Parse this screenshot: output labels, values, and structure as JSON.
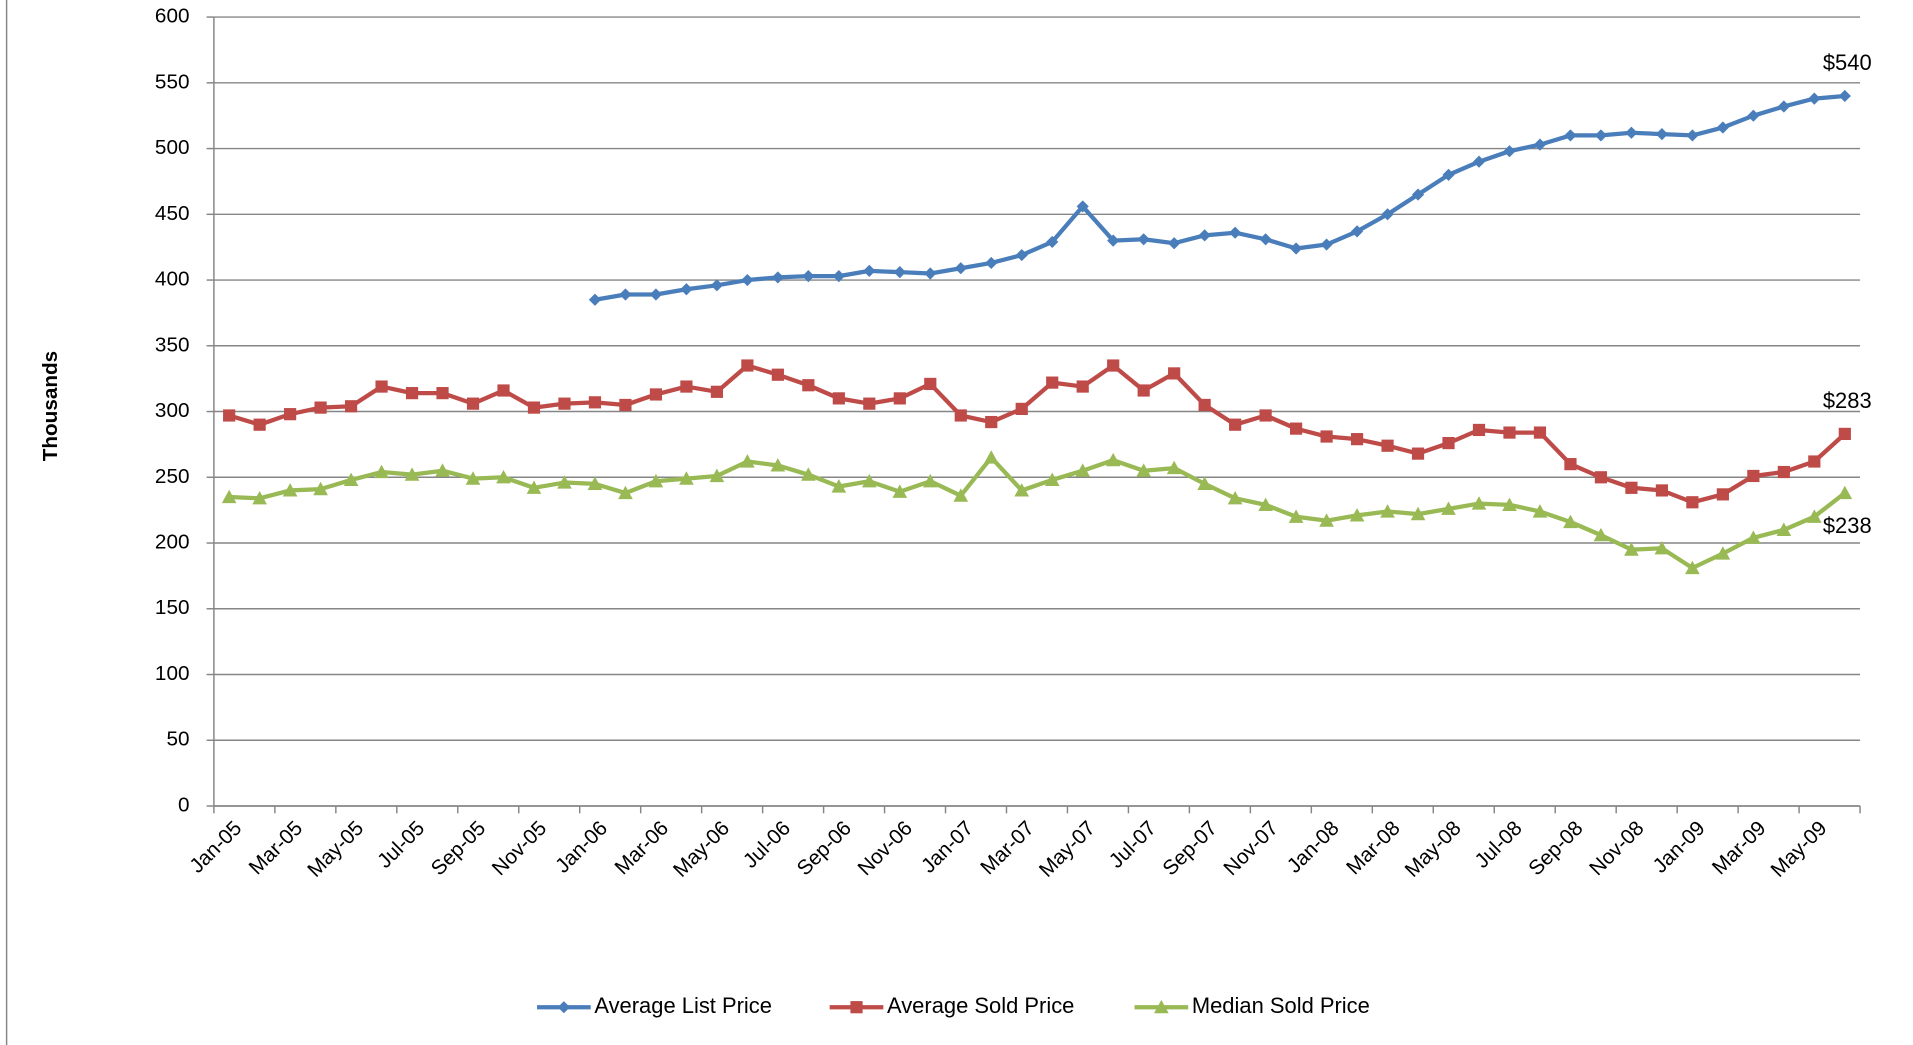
{
  "chart_data": {
    "type": "line",
    "y_label": "Thousands",
    "categories": [
      "Jan-05",
      null,
      "Mar-05",
      null,
      "May-05",
      null,
      "Jul-05",
      null,
      "Sep-05",
      null,
      "Nov-05",
      null,
      "Jan-06",
      null,
      "Mar-06",
      null,
      "May-06",
      null,
      "Jul-06",
      null,
      "Sep-06",
      null,
      "Nov-06",
      null,
      "Jan-07",
      null,
      "Mar-07",
      null,
      "May-07",
      null,
      "Jul-07",
      null,
      "Sep-07",
      null,
      "Nov-07",
      null,
      "Jan-08",
      null,
      "Mar-08",
      null,
      "May-08",
      null,
      "Jul-08",
      null,
      "Sep-08",
      null,
      "Nov-08",
      null,
      "Jan-09",
      null,
      "Mar-09",
      null,
      "May-09",
      null
    ],
    "series": [
      {
        "name": "Average List Price",
        "color": "#4a7ebb",
        "marker": "diamond",
        "values": [
          null,
          null,
          null,
          null,
          null,
          null,
          null,
          null,
          null,
          null,
          null,
          null,
          385,
          389,
          389,
          393,
          396,
          400,
          402,
          403,
          403,
          407,
          406,
          405,
          409,
          413,
          419,
          429,
          456,
          430,
          431,
          428,
          434,
          436,
          431,
          424,
          427,
          437,
          450,
          465,
          480,
          490,
          498,
          503,
          510,
          510,
          512,
          511,
          510,
          516,
          525,
          532,
          538,
          540
        ],
        "value_labels": [
          null,
          null,
          null,
          null,
          null,
          null,
          null,
          null,
          null,
          null,
          null,
          null,
          null,
          null,
          null,
          null,
          null,
          null,
          null,
          null,
          null,
          null,
          null,
          null,
          null,
          null,
          null,
          null,
          null,
          null,
          null,
          null,
          null,
          null,
          null,
          null,
          null,
          null,
          null,
          null,
          null,
          null,
          null,
          null,
          null,
          null,
          null,
          null,
          null,
          null,
          null,
          null,
          null,
          "$540"
        ]
      },
      {
        "name": "Average Sold Price",
        "color": "#be4b48",
        "marker": "square",
        "values": [
          297,
          290,
          298,
          303,
          304,
          319,
          314,
          314,
          306,
          316,
          303,
          306,
          307,
          305,
          313,
          319,
          315,
          335,
          328,
          320,
          310,
          306,
          310,
          321,
          297,
          292,
          302,
          322,
          319,
          335,
          316,
          329,
          305,
          290,
          297,
          287,
          281,
          279,
          274,
          268,
          276,
          286,
          284,
          284,
          260,
          250,
          242,
          240,
          231,
          237,
          251,
          254,
          262,
          283
        ],
        "value_labels": [
          null,
          null,
          null,
          null,
          null,
          null,
          null,
          null,
          null,
          null,
          null,
          null,
          null,
          null,
          null,
          null,
          null,
          null,
          null,
          null,
          null,
          null,
          null,
          null,
          null,
          null,
          null,
          null,
          null,
          null,
          null,
          null,
          null,
          null,
          null,
          null,
          null,
          null,
          null,
          null,
          null,
          null,
          null,
          null,
          null,
          null,
          null,
          null,
          null,
          null,
          null,
          null,
          null,
          "$283"
        ]
      },
      {
        "name": "Median Sold Price",
        "color": "#98b954",
        "marker": "triangle",
        "values": [
          235,
          234,
          240,
          241,
          248,
          254,
          252,
          255,
          249,
          250,
          242,
          246,
          245,
          238,
          247,
          249,
          251,
          262,
          259,
          252,
          243,
          247,
          239,
          247,
          236,
          265,
          240,
          248,
          255,
          263,
          255,
          257,
          245,
          234,
          229,
          220,
          217,
          221,
          224,
          222,
          226,
          230,
          229,
          224,
          216,
          206,
          195,
          196,
          181,
          192,
          204,
          210,
          220,
          238
        ],
        "value_labels": [
          null,
          null,
          null,
          null,
          null,
          null,
          null,
          null,
          null,
          null,
          null,
          null,
          null,
          null,
          null,
          null,
          null,
          null,
          null,
          null,
          null,
          null,
          null,
          null,
          null,
          null,
          null,
          null,
          null,
          null,
          null,
          null,
          null,
          null,
          null,
          null,
          null,
          null,
          null,
          null,
          null,
          null,
          null,
          null,
          null,
          null,
          null,
          null,
          null,
          null,
          null,
          null,
          null,
          "$238"
        ]
      }
    ],
    "ylim": [
      0,
      600
    ],
    "yticks": [
      0,
      50,
      100,
      150,
      200,
      250,
      300,
      350,
      400,
      450,
      500,
      550,
      600
    ],
    "grid": true,
    "legend": "bottom"
  }
}
